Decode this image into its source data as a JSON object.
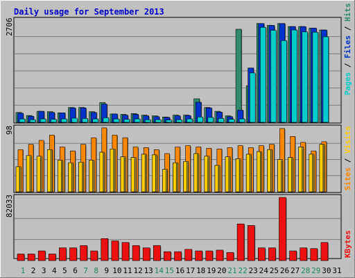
{
  "colors": {
    "background": "#c0c0c0",
    "plot_background": "#c0c0c0",
    "title": "#0000cc",
    "grid": "#808080",
    "hits": "#00cccc",
    "files": "#0033cc",
    "pages": "#2e8b6e",
    "visits": "#ff8800",
    "sites": "#ffcc00",
    "kbytes": "#ee1111",
    "weekend_day": "#1a8a5a",
    "weekday": "#000000"
  },
  "chart_data": [
    {
      "type": "bar",
      "title": "Daily usage for September 2013",
      "ylabel_parts": [
        "Pages",
        "Files",
        "Hits"
      ],
      "y_max_label": "2706",
      "ylim": [
        0,
        2706
      ],
      "categories": [
        "1",
        "2",
        "3",
        "4",
        "5",
        "6",
        "7",
        "8",
        "9",
        "10",
        "11",
        "12",
        "13",
        "14",
        "15",
        "16",
        "17",
        "18",
        "19",
        "20",
        "21",
        "22",
        "23",
        "24",
        "25",
        "26",
        "27",
        "28",
        "29",
        "30",
        "31"
      ],
      "weekend_days": [
        "1",
        "7",
        "8",
        "14",
        "15",
        "21",
        "22",
        "28",
        "29"
      ],
      "series": [
        {
          "name": "Pages",
          "values": [
            260,
            180,
            290,
            280,
            250,
            390,
            390,
            280,
            520,
            220,
            210,
            230,
            190,
            170,
            140,
            190,
            190,
            620,
            390,
            290,
            170,
            2450,
            960,
            2600,
            2550,
            2600,
            2520,
            2520,
            2480,
            2430,
            0
          ]
        },
        {
          "name": "Files",
          "values": [
            240,
            160,
            290,
            260,
            250,
            380,
            380,
            260,
            480,
            220,
            190,
            210,
            170,
            150,
            130,
            170,
            180,
            530,
            380,
            270,
            150,
            320,
            1430,
            2600,
            2550,
            2600,
            2520,
            2520,
            2480,
            2430,
            0
          ]
        },
        {
          "name": "Hits",
          "values": [
            90,
            70,
            90,
            80,
            90,
            110,
            100,
            90,
            120,
            90,
            80,
            90,
            70,
            70,
            60,
            70,
            90,
            140,
            130,
            100,
            80,
            90,
            1300,
            2500,
            2420,
            2150,
            2430,
            2380,
            2370,
            2250,
            0
          ]
        }
      ]
    },
    {
      "type": "bar",
      "ylabel_parts": [
        "Sites",
        "Visits"
      ],
      "y_max_label": "98",
      "ylim": [
        0,
        98
      ],
      "categories": [
        "1",
        "2",
        "3",
        "4",
        "5",
        "6",
        "7",
        "8",
        "9",
        "10",
        "11",
        "12",
        "13",
        "14",
        "15",
        "16",
        "17",
        "18",
        "19",
        "20",
        "21",
        "22",
        "23",
        "24",
        "25",
        "26",
        "27",
        "28",
        "29",
        "30",
        "31"
      ],
      "series": [
        {
          "name": "Visits",
          "values": [
            64,
            72,
            78,
            86,
            68,
            62,
            72,
            82,
            97,
            86,
            82,
            68,
            67,
            64,
            58,
            68,
            70,
            68,
            66,
            65,
            67,
            70,
            67,
            70,
            72,
            96,
            84,
            75,
            62,
            76,
            0
          ]
        },
        {
          "name": "Sites",
          "values": [
            38,
            55,
            54,
            64,
            48,
            44,
            45,
            48,
            60,
            65,
            53,
            52,
            57,
            56,
            34,
            44,
            46,
            58,
            54,
            40,
            53,
            50,
            57,
            61,
            64,
            49,
            52,
            68,
            57,
            72,
            0
          ]
        }
      ]
    },
    {
      "type": "bar",
      "ylabel_parts": [
        "KBytes"
      ],
      "y_max_label": "82033",
      "ylim": [
        0,
        82033
      ],
      "categories": [
        "1",
        "2",
        "3",
        "4",
        "5",
        "6",
        "7",
        "8",
        "9",
        "10",
        "11",
        "12",
        "13",
        "14",
        "15",
        "16",
        "17",
        "18",
        "19",
        "20",
        "21",
        "22",
        "23",
        "24",
        "25",
        "26",
        "27",
        "28",
        "29",
        "30",
        "31"
      ],
      "series": [
        {
          "name": "KBytes",
          "values": [
            8600,
            8600,
            12600,
            8600,
            16600,
            16600,
            19600,
            12600,
            28600,
            25600,
            23600,
            19600,
            16600,
            19600,
            11600,
            11600,
            14600,
            12600,
            12600,
            13600,
            10600,
            47600,
            45600,
            16600,
            16600,
            82000,
            12600,
            16600,
            15600,
            23600,
            0
          ]
        }
      ]
    }
  ]
}
